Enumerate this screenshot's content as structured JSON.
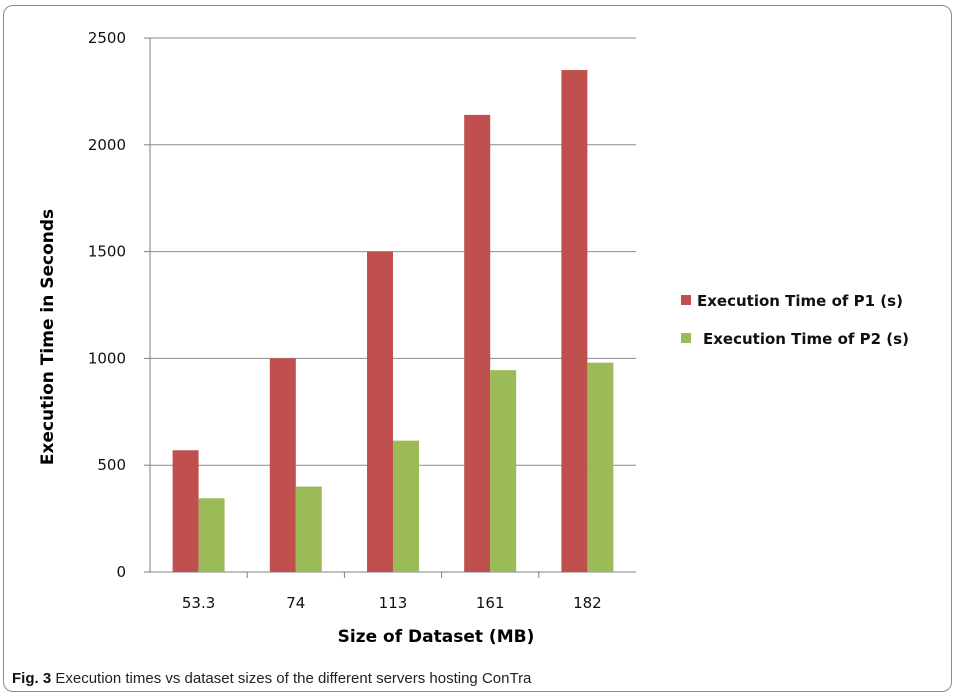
{
  "chart_data": {
    "type": "bar",
    "categories": [
      "53.3",
      "74",
      "113",
      "161",
      "182"
    ],
    "series": [
      {
        "name": "Execution Time of P1 (s)",
        "values": [
          570,
          1000,
          1500,
          2140,
          2350
        ],
        "color": "#c0504d"
      },
      {
        "name": "Execution Time of P2 (s)",
        "values": [
          345,
          400,
          615,
          945,
          980
        ],
        "color": "#9bbb59"
      }
    ],
    "xlabel": "Size of Dataset (MB)",
    "ylabel": "Execution Time in Seconds",
    "ylim": [
      0,
      2500
    ],
    "yticks": [
      0,
      500,
      1000,
      1500,
      2000,
      2500
    ],
    "grid": true,
    "legend": "right"
  },
  "caption": {
    "label": "Fig. 3",
    "text": "Execution times vs dataset sizes of the different servers hosting ConTra"
  }
}
